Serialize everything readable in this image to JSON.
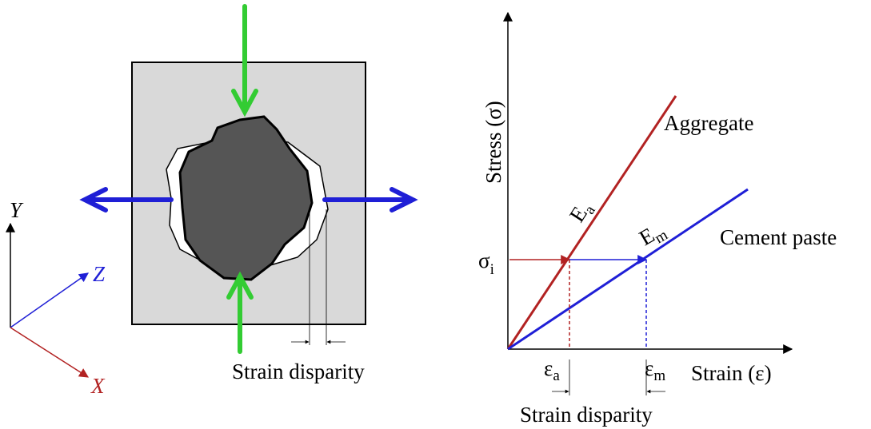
{
  "left_panel": {
    "axes": {
      "y": "Y",
      "z": "Z",
      "x": "X"
    },
    "strain_disparity": "Strain disparity"
  },
  "right_panel": {
    "y_axis_label": "Stress (σ)",
    "x_axis_label": "Strain (ε)",
    "aggregate": "Aggregate",
    "cement_paste": "Cement paste",
    "e_a": {
      "symbol": "E",
      "subscript": "a"
    },
    "e_m": {
      "symbol": "E",
      "subscript": "m"
    },
    "sigma_i": {
      "symbol": "σ",
      "subscript": "i"
    },
    "eps_a": {
      "symbol": "ε",
      "subscript": "a"
    },
    "eps_m": {
      "symbol": "ε",
      "subscript": "m"
    },
    "strain_disparity": "Strain disparity"
  }
}
